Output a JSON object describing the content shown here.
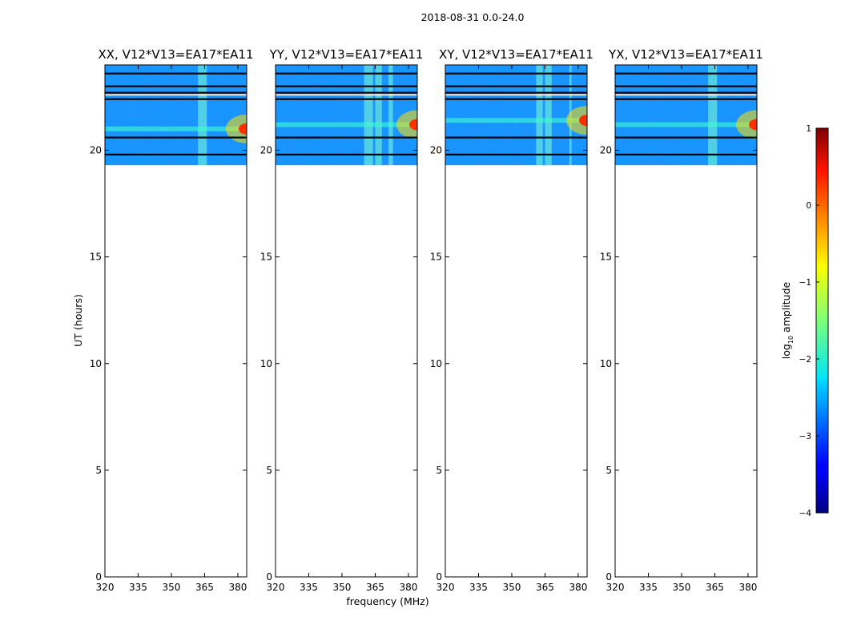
{
  "chart_data": {
    "type": "heatmap",
    "suptitle": "2018-08-31 0.0-24.0",
    "xlabel": "frequency (MHz)",
    "ylabel": "UT (hours)",
    "xlim": [
      320,
      384
    ],
    "ylim": [
      0,
      24
    ],
    "xticks": [
      "320",
      "335",
      "350",
      "365",
      "380"
    ],
    "yticks": [
      "0",
      "5",
      "10",
      "15",
      "20"
    ],
    "data_time_range_hours": [
      19.3,
      24
    ],
    "panels": [
      {
        "title": "XX, V12*V13=EA17*EA11",
        "rfi_bands_mhz": [
          [
            362,
            366
          ]
        ],
        "edge_peak_hour": 21.0
      },
      {
        "title": "YY, V12*V13=EA17*EA11",
        "rfi_bands_mhz": [
          [
            360,
            364
          ],
          [
            365,
            368
          ],
          [
            371,
            373
          ]
        ],
        "edge_peak_hour": 21.2
      },
      {
        "title": "XY, V12*V13=EA17*EA11",
        "rfi_bands_mhz": [
          [
            361,
            364
          ],
          [
            365,
            368
          ],
          [
            376,
            377
          ]
        ],
        "edge_peak_hour": 21.4
      },
      {
        "title": "YX, V12*V13=EA17*EA11",
        "rfi_bands_mhz": [
          [
            362,
            366
          ]
        ],
        "edge_peak_hour": 21.2
      }
    ],
    "flagged_hours": [
      19.8,
      20.6,
      22.4,
      22.7,
      23.0,
      23.6
    ],
    "colorbar": {
      "label": "log10 amplitude",
      "ticks": [
        "1",
        "0",
        "−1",
        "−2",
        "−3",
        "−4"
      ],
      "range": [
        -4,
        1
      ]
    }
  }
}
